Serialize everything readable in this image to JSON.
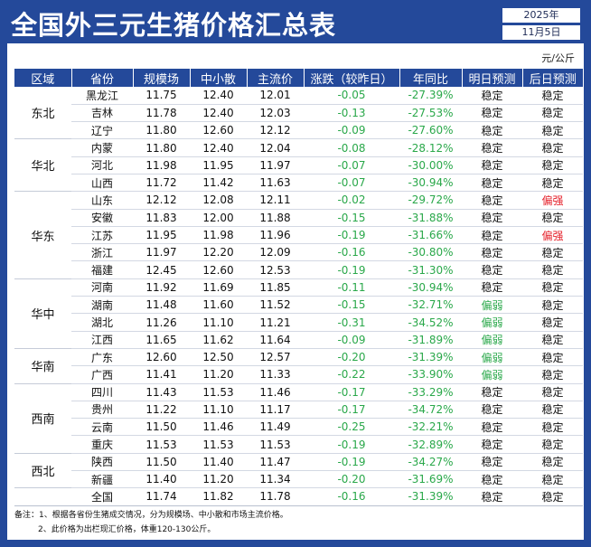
{
  "title": "全国外三元生猪价格汇总表",
  "date": {
    "year": "2025年",
    "day": "11月5日"
  },
  "unit": "元/公斤",
  "headers": [
    "区域",
    "省份",
    "规模场",
    "中小散",
    "主流价",
    "涨跌（较昨日）",
    "年同比",
    "明日预测",
    "后日预测"
  ],
  "groups": [
    {
      "region": "东北",
      "rows": [
        [
          "黑龙江",
          "11.75",
          "12.40",
          "12.01",
          "-0.05",
          "-27.39%",
          "稳定",
          "稳定"
        ],
        [
          "吉林",
          "11.78",
          "12.40",
          "12.03",
          "-0.13",
          "-27.53%",
          "稳定",
          "稳定"
        ],
        [
          "辽宁",
          "11.80",
          "12.60",
          "12.12",
          "-0.09",
          "-27.60%",
          "稳定",
          "稳定"
        ]
      ]
    },
    {
      "region": "华北",
      "rows": [
        [
          "内蒙",
          "11.80",
          "12.40",
          "12.04",
          "-0.08",
          "-28.12%",
          "稳定",
          "稳定"
        ],
        [
          "河北",
          "11.98",
          "11.95",
          "11.97",
          "-0.07",
          "-30.00%",
          "稳定",
          "稳定"
        ],
        [
          "山西",
          "11.72",
          "11.42",
          "11.63",
          "-0.07",
          "-30.94%",
          "稳定",
          "稳定"
        ]
      ]
    },
    {
      "region": "华东",
      "rows": [
        [
          "山东",
          "12.12",
          "12.08",
          "12.11",
          "-0.02",
          "-29.72%",
          "稳定",
          "偏强"
        ],
        [
          "安徽",
          "11.83",
          "12.00",
          "11.88",
          "-0.15",
          "-31.88%",
          "稳定",
          "稳定"
        ],
        [
          "江苏",
          "11.95",
          "11.98",
          "11.96",
          "-0.19",
          "-31.66%",
          "稳定",
          "偏强"
        ],
        [
          "浙江",
          "11.97",
          "12.20",
          "12.09",
          "-0.16",
          "-30.80%",
          "稳定",
          "稳定"
        ],
        [
          "福建",
          "12.45",
          "12.60",
          "12.53",
          "-0.19",
          "-31.30%",
          "稳定",
          "稳定"
        ]
      ]
    },
    {
      "region": "华中",
      "rows": [
        [
          "河南",
          "11.92",
          "11.69",
          "11.85",
          "-0.11",
          "-30.94%",
          "稳定",
          "稳定"
        ],
        [
          "湖南",
          "11.48",
          "11.60",
          "11.52",
          "-0.15",
          "-32.71%",
          "偏弱",
          "稳定"
        ],
        [
          "湖北",
          "11.26",
          "11.10",
          "11.21",
          "-0.31",
          "-34.52%",
          "偏弱",
          "稳定"
        ],
        [
          "江西",
          "11.65",
          "11.62",
          "11.64",
          "-0.09",
          "-31.89%",
          "偏弱",
          "稳定"
        ]
      ]
    },
    {
      "region": "华南",
      "rows": [
        [
          "广东",
          "12.60",
          "12.50",
          "12.57",
          "-0.20",
          "-31.39%",
          "偏弱",
          "稳定"
        ],
        [
          "广西",
          "11.41",
          "11.20",
          "11.33",
          "-0.22",
          "-33.90%",
          "偏弱",
          "稳定"
        ]
      ]
    },
    {
      "region": "西南",
      "rows": [
        [
          "四川",
          "11.43",
          "11.53",
          "11.46",
          "-0.17",
          "-33.29%",
          "稳定",
          "稳定"
        ],
        [
          "贵州",
          "11.22",
          "11.10",
          "11.17",
          "-0.17",
          "-34.72%",
          "稳定",
          "稳定"
        ],
        [
          "云南",
          "11.50",
          "11.46",
          "11.49",
          "-0.25",
          "-32.21%",
          "稳定",
          "稳定"
        ],
        [
          "重庆",
          "11.53",
          "11.53",
          "11.53",
          "-0.19",
          "-32.89%",
          "稳定",
          "稳定"
        ]
      ]
    },
    {
      "region": "西北",
      "rows": [
        [
          "陕西",
          "11.50",
          "11.40",
          "11.47",
          "-0.19",
          "-34.27%",
          "稳定",
          "稳定"
        ],
        [
          "新疆",
          "11.40",
          "11.20",
          "11.34",
          "-0.20",
          "-31.69%",
          "稳定",
          "稳定"
        ]
      ]
    }
  ],
  "total": [
    "全国",
    "11.74",
    "11.82",
    "11.78",
    "-0.16",
    "-31.39%",
    "稳定",
    "稳定"
  ],
  "notes": [
    "备注：1、根据各省份生猪成交情况，分为规模场、中小散和市场主流价格。",
    "2、此价格为出栏现汇价格，体重120-130公斤。"
  ],
  "colors": {
    "header_bg": "#24499a",
    "up_strong": "#e5212b",
    "weak_green": "#2aa84a"
  }
}
